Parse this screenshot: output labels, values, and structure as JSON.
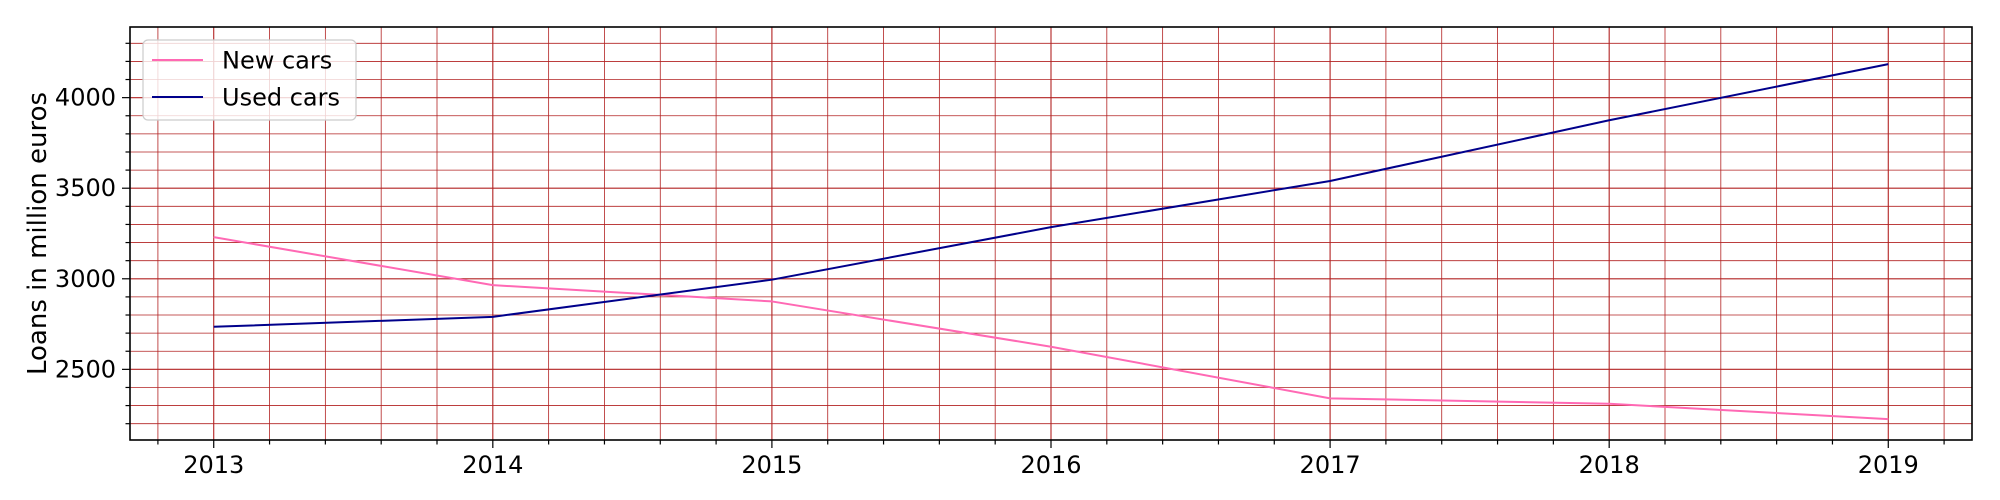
{
  "chart_data": {
    "type": "line",
    "title": "",
    "xlabel": "",
    "ylabel": "Loans in million euros",
    "x": [
      2013,
      2014,
      2015,
      2016,
      2017,
      2018,
      2019
    ],
    "x_tick_labels": [
      "2013",
      "2014",
      "2015",
      "2016",
      "2017",
      "2018",
      "2019"
    ],
    "y_ticks": [
      2500,
      3000,
      3500,
      4000
    ],
    "y_tick_labels": [
      "2500",
      "3000",
      "3500",
      "4000"
    ],
    "xlim": [
      2012.7,
      2019.3
    ],
    "ylim": [
      2110,
      4390
    ],
    "grid": "major and minor, both axes",
    "legend_position": "upper-left",
    "series": [
      {
        "name": "New cars",
        "color": "#ff69b4",
        "values": [
          3230,
          2965,
          2875,
          2625,
          2340,
          2310,
          2225
        ]
      },
      {
        "name": "Used cars",
        "color": "#00008b",
        "values": [
          2735,
          2790,
          2995,
          3285,
          3540,
          3875,
          4185
        ]
      }
    ],
    "colors": {
      "grid": "#b22222",
      "axes": "#000000"
    }
  }
}
